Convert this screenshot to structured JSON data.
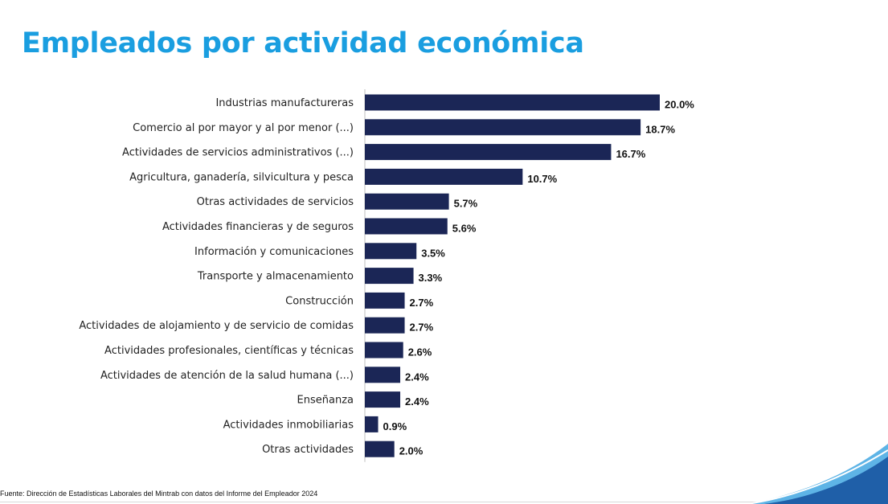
{
  "title": "Empleados por actividad económica",
  "source": "Fuente: Dirección de Estadísticas Laborales del Mintrab con datos del Informe del Empleador 2024",
  "colors": {
    "title": "#1a9ee0",
    "bar": "#1b2656",
    "corner_dark": "#1f5fa8",
    "corner_light": "#5eb4e6"
  },
  "chart_data": {
    "type": "bar",
    "orientation": "horizontal",
    "categories": [
      "Industrias manufactureras",
      "Comercio al por mayor y al por menor (...)",
      "Actividades de servicios administrativos (...)",
      "Agricultura, ganadería, silvicultura y pesca",
      "Otras actividades de servicios",
      "Actividades financieras y de seguros",
      "Información y comunicaciones",
      "Transporte y almacenamiento",
      "Construcción",
      "Actividades de alojamiento y de servicio de comidas",
      "Actividades profesionales, científicas y técnicas",
      "Actividades de atención de la salud humana (...)",
      "Enseñanza",
      "Actividades inmobiliarias",
      "Otras actividades"
    ],
    "values": [
      20.0,
      18.7,
      16.7,
      10.7,
      5.7,
      5.6,
      3.5,
      3.3,
      2.7,
      2.7,
      2.6,
      2.4,
      2.4,
      0.9,
      2.0
    ],
    "value_labels": [
      "20.0%",
      "18.7%",
      "16.7%",
      "10.7%",
      "5.7%",
      "5.6%",
      "3.5%",
      "3.3%",
      "2.7%",
      "2.7%",
      "2.6%",
      "2.4%",
      "2.4%",
      "0.9%",
      "2.0%"
    ],
    "xlim": [
      0,
      20
    ],
    "grid": false,
    "legend": "none"
  }
}
